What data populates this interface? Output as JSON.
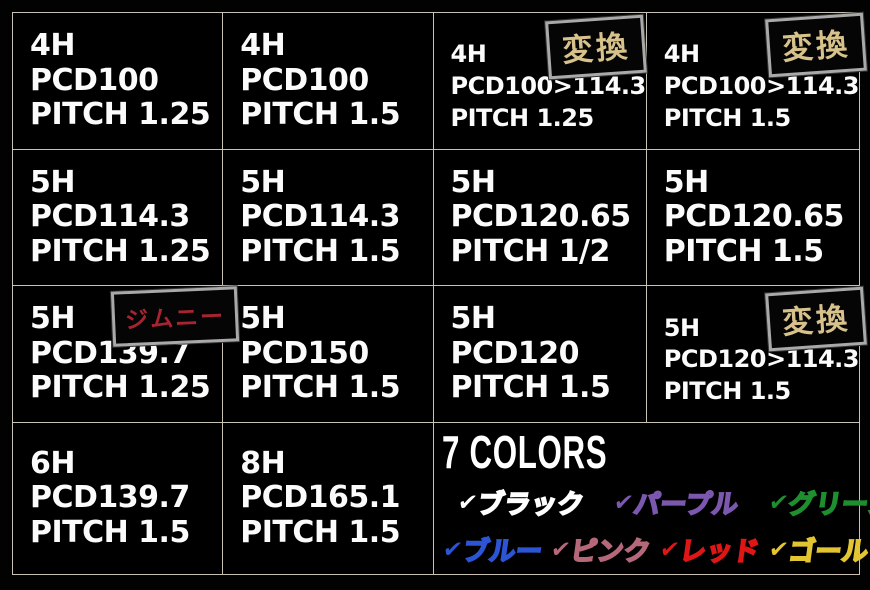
{
  "meta": {
    "description": "Black spec table graphic listing wheel hub hole-count, PCD and thread pitch variants with Japanese badges and a 7-color legend",
    "palette": {
      "background": "#020202",
      "grid_line": "#c9c1b2",
      "cell_text": "#fbfbfb",
      "badge_border": "#a9a9a9",
      "henkan_badge_text": "#d8c28c",
      "jimny_badge_text": "#a82431"
    }
  },
  "grid": {
    "cells": [
      {
        "lines": [
          "4H",
          "PCD100",
          "PITCH 1.25"
        ]
      },
      {
        "lines": [
          "4H",
          "PCD100",
          "PITCH 1.5"
        ]
      },
      {
        "lines": [
          "4H",
          "PCD100>114.3",
          "PITCH 1.25"
        ],
        "badge": "変換"
      },
      {
        "lines": [
          "4H",
          "PCD100>114.3",
          "PITCH 1.5"
        ],
        "badge": "変換"
      },
      {
        "lines": [
          "5H",
          "PCD114.3",
          "PITCH 1.25"
        ]
      },
      {
        "lines": [
          "5H",
          "PCD114.3",
          "PITCH 1.5"
        ]
      },
      {
        "lines": [
          "5H",
          "PCD120.65",
          "PITCH 1/2"
        ]
      },
      {
        "lines": [
          "5H",
          "PCD120.65",
          "PITCH 1.5"
        ]
      },
      {
        "lines": [
          "5H",
          "PCD139.7",
          "PITCH 1.25"
        ],
        "badge": "ジムニー"
      },
      {
        "lines": [
          "5H",
          "PCD150",
          "PITCH 1.5"
        ]
      },
      {
        "lines": [
          "5H",
          "PCD120",
          "PITCH 1.5"
        ]
      },
      {
        "lines": [
          "5H",
          "PCD120>114.3",
          "PITCH 1.5"
        ],
        "badge": "変換"
      },
      {
        "lines": [
          "6H",
          "PCD139.7",
          "PITCH 1.5"
        ]
      },
      {
        "lines": [
          "8H",
          "PCD165.1",
          "PITCH 1.5"
        ]
      }
    ]
  },
  "colors_section": {
    "title": "7 COLORS",
    "check_glyph": "✔",
    "items": [
      {
        "label": "ブラック",
        "hex": "#ffffff"
      },
      {
        "label": "パープル",
        "hex": "#7b57ad"
      },
      {
        "label": "グリーン",
        "hex": "#1d8f2f"
      },
      {
        "label": "ブルー",
        "hex": "#2b55d4"
      },
      {
        "label": "ピンク",
        "hex": "#b4687a"
      },
      {
        "label": "レッド",
        "hex": "#e01515"
      },
      {
        "label": "ゴールド",
        "hex": "#e3c431"
      }
    ]
  }
}
